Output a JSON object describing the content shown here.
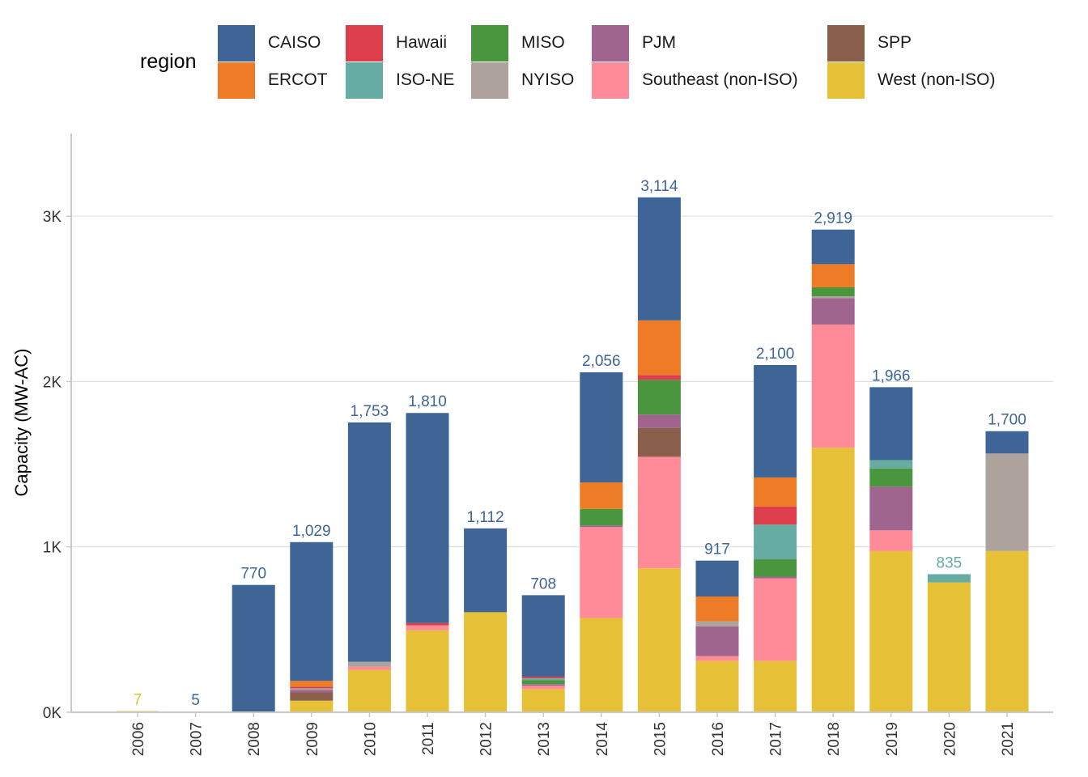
{
  "chart_data": {
    "type": "bar",
    "stacked": true,
    "title": "",
    "xlabel": "",
    "ylabel": "Capacity (MW-AC)",
    "ylim": [
      0,
      3500
    ],
    "yticks": [
      0,
      1000,
      2000,
      3000
    ],
    "ytick_labels": [
      "0K",
      "1K",
      "2K",
      "3K"
    ],
    "grid": "horizontal",
    "legend": {
      "title": "region",
      "position": "top"
    },
    "categories": [
      "2006",
      "2007",
      "2008",
      "2009",
      "2010",
      "2011",
      "2012",
      "2013",
      "2014",
      "2015",
      "2016",
      "2017",
      "2018",
      "2019",
      "2020",
      "2021"
    ],
    "totals": [
      "7",
      "5",
      "770",
      "1,029",
      "1,753",
      "1,810",
      "1,112",
      "708",
      "2,056",
      "3,114",
      "917",
      "2,100",
      "2,919",
      "1,966",
      "835",
      "1,700"
    ],
    "total_label_colors": [
      "#E6C138",
      "#3E6596",
      "#3E6596",
      "#3E6596",
      "#3E6596",
      "#3E6596",
      "#3E6596",
      "#3E6596",
      "#3E6596",
      "#3E6596",
      "#3E6596",
      "#3E6596",
      "#3E6596",
      "#3E6596",
      "#66ACA2",
      "#3E6596"
    ],
    "series": [
      {
        "name": "West (non-ISO)",
        "color": "#E6C138",
        "values": [
          7,
          0,
          0,
          70,
          255,
          495,
          605,
          140,
          570,
          870,
          310,
          310,
          1600,
          975,
          785,
          975
        ]
      },
      {
        "name": "Southeast (non-ISO)",
        "color": "#FF8A98",
        "values": [
          0,
          0,
          0,
          0,
          20,
          30,
          0,
          20,
          550,
          675,
          30,
          500,
          745,
          125,
          0,
          0
        ]
      },
      {
        "name": "SPP",
        "color": "#8A5F4B",
        "values": [
          0,
          0,
          0,
          50,
          0,
          0,
          0,
          0,
          0,
          175,
          0,
          0,
          0,
          0,
          0,
          0
        ]
      },
      {
        "name": "PJM",
        "color": "#A0658F",
        "values": [
          0,
          0,
          0,
          15,
          0,
          0,
          0,
          10,
          10,
          80,
          180,
          10,
          160,
          265,
          0,
          0
        ]
      },
      {
        "name": "NYISO",
        "color": "#AEA29C",
        "values": [
          0,
          0,
          0,
          10,
          30,
          0,
          0,
          0,
          0,
          0,
          30,
          0,
          10,
          0,
          0,
          590
        ]
      },
      {
        "name": "MISO",
        "color": "#4A963E",
        "values": [
          0,
          0,
          0,
          0,
          0,
          0,
          0,
          25,
          100,
          210,
          0,
          105,
          55,
          110,
          0,
          0
        ]
      },
      {
        "name": "ISO-NE",
        "color": "#66ACA2",
        "values": [
          0,
          0,
          0,
          0,
          0,
          0,
          0,
          10,
          0,
          0,
          0,
          210,
          0,
          50,
          50,
          0
        ]
      },
      {
        "name": "Hawaii",
        "color": "#DC3F4B",
        "values": [
          0,
          0,
          0,
          10,
          0,
          15,
          0,
          10,
          0,
          30,
          0,
          110,
          0,
          0,
          0,
          0
        ]
      },
      {
        "name": "ERCOT",
        "color": "#EE7B25",
        "values": [
          0,
          0,
          0,
          35,
          0,
          0,
          0,
          0,
          160,
          330,
          150,
          175,
          140,
          0,
          0,
          0
        ]
      },
      {
        "name": "CAISO",
        "color": "#3E6596",
        "values": [
          0,
          5,
          770,
          839,
          1448,
          1270,
          507,
          493,
          666,
          744,
          217,
          680,
          209,
          441,
          0,
          135
        ]
      }
    ],
    "legend_order": [
      "CAISO",
      "ERCOT",
      "Hawaii",
      "ISO-NE",
      "MISO",
      "NYISO",
      "PJM",
      "Southeast (non-ISO)",
      "SPP",
      "West (non-ISO)"
    ]
  }
}
